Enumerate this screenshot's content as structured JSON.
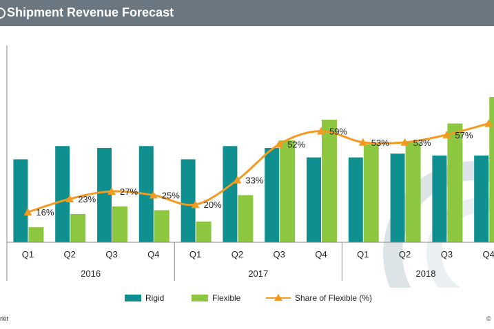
{
  "header": {
    "title": "Shipment Revenue Forecast"
  },
  "colors": {
    "rigid": "#0f8f8f",
    "flexible": "#8dc63f",
    "share": "#f39a21",
    "header_bg": "#6b7780"
  },
  "legend": {
    "rigid": "Rigid",
    "flexible": "Flexible",
    "share": "Share of Flexible (%)"
  },
  "footer": {
    "left": "rkit",
    "right": "©"
  },
  "chart_data": {
    "type": "bar",
    "title": "Shipment Revenue Forecast",
    "categories": [
      "Q1",
      "Q2",
      "Q3",
      "Q4",
      "Q1",
      "Q2",
      "Q3",
      "Q4",
      "Q1",
      "Q2",
      "Q3",
      "Q4"
    ],
    "groups": [
      {
        "label": "2016",
        "count": 4
      },
      {
        "label": "2017",
        "count": 4
      },
      {
        "label": "2018",
        "count": 4
      }
    ],
    "ylim": [
      0,
      100
    ],
    "series": [
      {
        "name": "Rigid",
        "type": "bar",
        "values": [
          44,
          51,
          50,
          51,
          44,
          51,
          50,
          45,
          45,
          47,
          46,
          46
        ]
      },
      {
        "name": "Flexible",
        "type": "bar",
        "values": [
          8,
          15,
          19,
          17,
          11,
          25,
          54,
          65,
          52,
          53,
          63,
          77
        ]
      },
      {
        "name": "Share of Flexible (%)",
        "type": "line",
        "values": [
          16,
          23,
          27,
          25,
          20,
          33,
          52,
          59,
          53,
          53,
          57,
          63
        ],
        "labels": [
          "16%",
          "23%",
          "27%",
          "25%",
          "20%",
          "33%",
          "52%",
          "59%",
          "53%",
          "53%",
          "57%",
          ""
        ]
      }
    ],
    "line_ylim": [
      0,
      100
    ],
    "grid": false,
    "legend_position": "bottom"
  }
}
